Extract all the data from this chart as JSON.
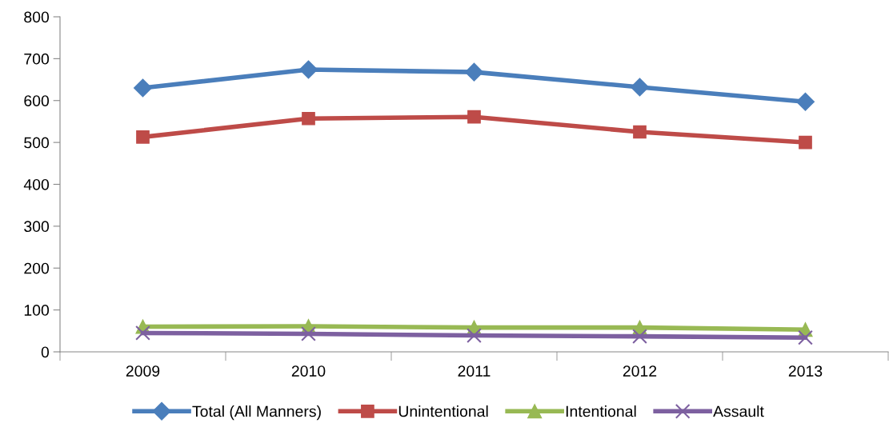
{
  "chart_data": {
    "type": "line",
    "categories": [
      "2009",
      "2010",
      "2011",
      "2012",
      "2013"
    ],
    "series": [
      {
        "name": "Total (All Manners)",
        "color": "#4a7ebb",
        "marker": "diamond",
        "values": [
          630,
          674,
          668,
          632,
          597
        ]
      },
      {
        "name": "Unintentional",
        "color": "#be4b48",
        "marker": "square",
        "values": [
          513,
          557,
          561,
          525,
          500
        ]
      },
      {
        "name": "Intentional",
        "color": "#98b954",
        "marker": "triangle",
        "values": [
          60,
          61,
          58,
          58,
          53
        ]
      },
      {
        "name": "Assault",
        "color": "#7d60a0",
        "marker": "cross",
        "values": [
          45,
          43,
          39,
          37,
          34
        ]
      }
    ],
    "ylim": [
      0,
      800
    ],
    "yticks": [
      0,
      100,
      200,
      300,
      400,
      500,
      600,
      700,
      800
    ],
    "grid": false,
    "legend": "bottom"
  }
}
